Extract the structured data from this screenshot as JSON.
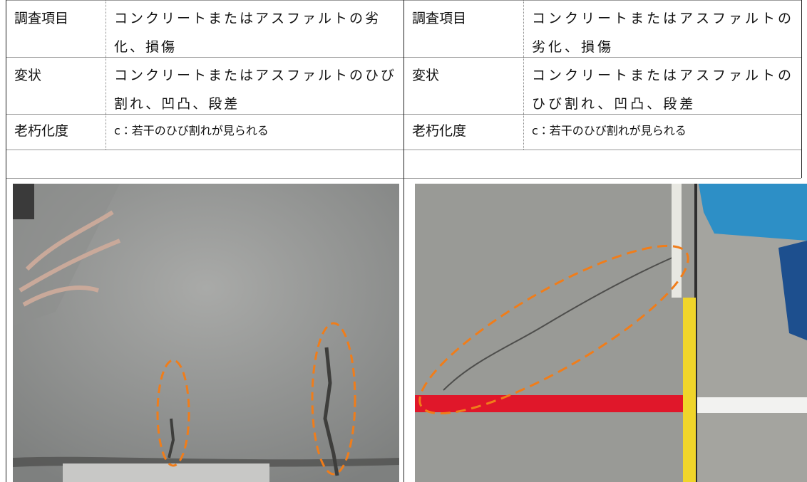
{
  "tables": [
    {
      "rows": [
        [
          "調査項目",
          "コンクリートまたはアスファルトの劣化、損傷"
        ],
        [
          "変状",
          "コンクリートまたはアスファルトのひび割れ、凹凸、段差"
        ],
        [
          "老朽化度",
          "c：若干のひび割れが見られる"
        ]
      ]
    },
    {
      "rows": [
        [
          "調査項目",
          "コンクリートまたはアスファルトの劣化、損傷"
        ],
        [
          "変状",
          "コンクリートまたはアスファルトのひび割れ、凹凸、段差"
        ],
        [
          "老朽化度",
          "c：若干のひび割れが見られる"
        ]
      ]
    }
  ]
}
